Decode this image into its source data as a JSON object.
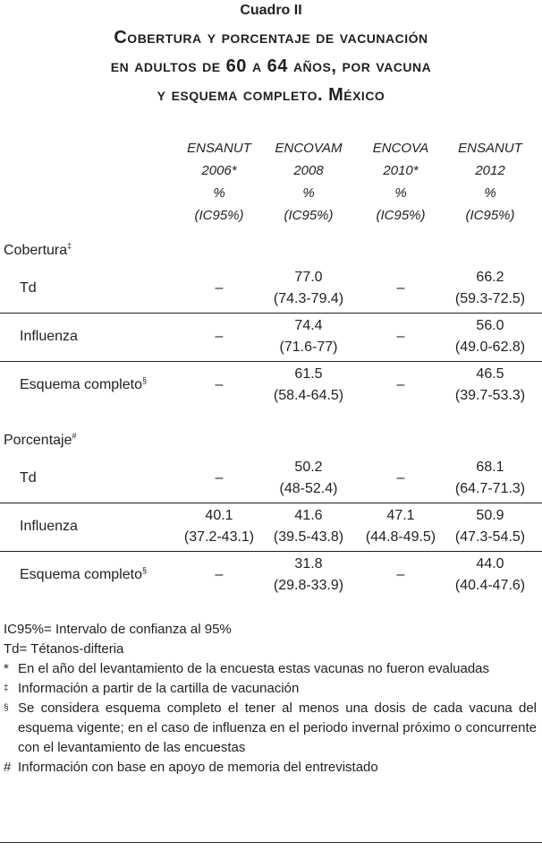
{
  "header": {
    "label": "Cuadro II",
    "title": [
      "Cobertura y porcentaje de vacunación",
      "en adultos de 60 a 64 años, por vacuna",
      "y esquema completo. México"
    ]
  },
  "table": {
    "columns": [
      [
        "ENSANUT",
        "2006*",
        "%",
        "(IC95%)"
      ],
      [
        "ENCOVAM",
        "2008",
        "%",
        "(IC95%)"
      ],
      [
        "ENCOVA",
        "2010*",
        "%",
        "(IC95%)"
      ],
      [
        "ENSANUT",
        "2012",
        "%",
        "(IC95%)"
      ]
    ],
    "sections": [
      {
        "label": "Cobertura",
        "mark": "‡",
        "rows": [
          {
            "label": "Td",
            "cells": [
              [
                "–"
              ],
              [
                "77.0",
                "(74.3-79.4)"
              ],
              [
                "–"
              ],
              [
                "66.2",
                "(59.3-72.5)"
              ]
            ]
          },
          {
            "label": "Influenza",
            "cells": [
              [
                "–"
              ],
              [
                "74.4",
                "(71.6-77)"
              ],
              [
                "–"
              ],
              [
                "56.0",
                "(49.0-62.8)"
              ]
            ]
          },
          {
            "label": "Esquema completo",
            "mark": "§",
            "cells": [
              [
                "–"
              ],
              [
                "61.5",
                "(58.4-64.5)"
              ],
              [
                "–"
              ],
              [
                "46.5",
                "(39.7-53.3)"
              ]
            ]
          }
        ]
      },
      {
        "label": "Porcentaje",
        "mark": "#",
        "rows": [
          {
            "label": "Td",
            "cells": [
              [
                "–"
              ],
              [
                "50.2",
                "(48-52.4)"
              ],
              [
                "–"
              ],
              [
                "68.1",
                "(64.7-71.3)"
              ]
            ]
          },
          {
            "label": "Influenza",
            "cells": [
              [
                "40.1",
                "(37.2-43.1)"
              ],
              [
                "41.6",
                "(39.5-43.8)"
              ],
              [
                "47.1",
                "(44.8-49.5)"
              ],
              [
                "50.9",
                "(47.3-54.5)"
              ]
            ]
          },
          {
            "label": "Esquema completo",
            "mark": "§",
            "cells": [
              [
                "–"
              ],
              [
                "31.8",
                "(29.8-33.9)"
              ],
              [
                "–"
              ],
              [
                "44.0",
                "(40.4-47.6)"
              ]
            ]
          }
        ]
      }
    ]
  },
  "footnotes": {
    "plain": [
      "IC95%= Intervalo de confianza al 95%",
      "Td= Tétanos-difteria"
    ],
    "items": [
      {
        "symbol": "*",
        "text": "En el año del levantamiento de la encuesta estas vacunas no fueron evaluadas"
      },
      {
        "symbol": "‡",
        "text": "Información a partir de la cartilla de vacunación"
      },
      {
        "symbol": "§",
        "text": "Se considera esquema completo el tener al menos una dosis de cada vacuna del esquema vigente; en el caso de influenza en el periodo invernal próximo o concurrente con el levantamiento de las encuestas"
      },
      {
        "symbol": "#",
        "text": "Información con base en apoyo de memoria del entrevistado"
      }
    ]
  }
}
